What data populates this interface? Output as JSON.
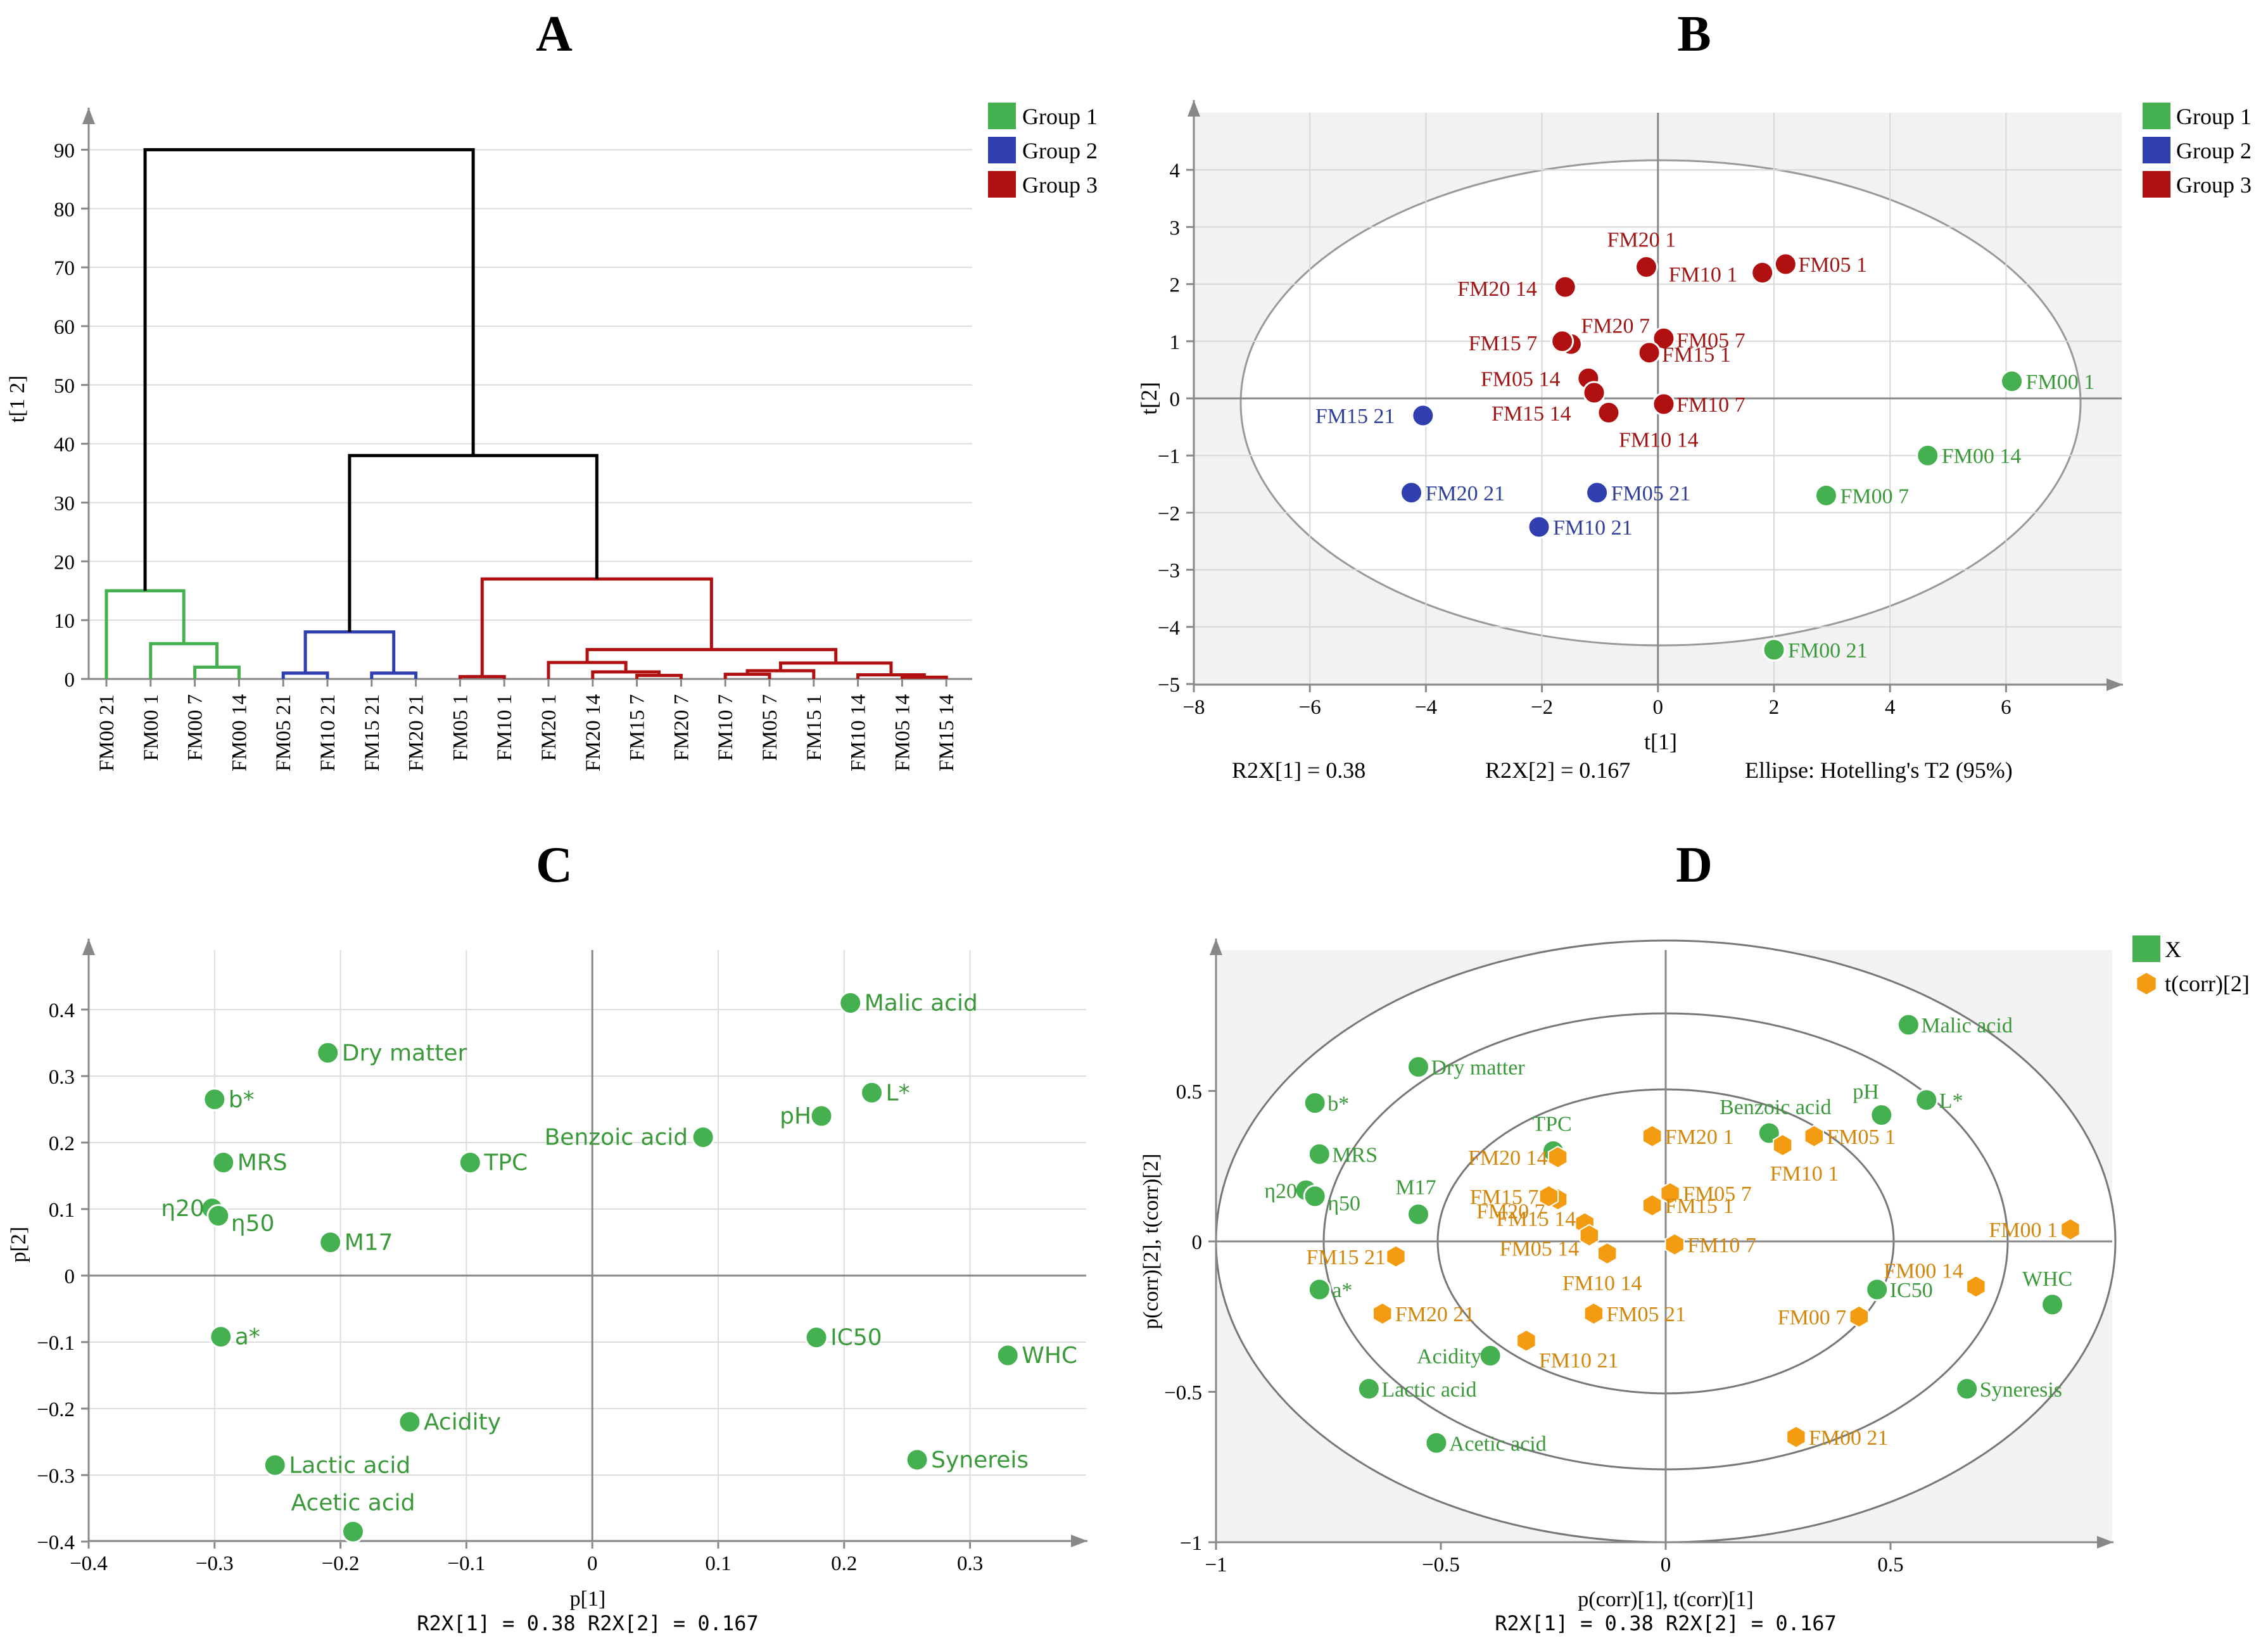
{
  "panels": {
    "A": {
      "letter": "A",
      "ylabel": "t[1 2]",
      "yticks": [
        0,
        10,
        20,
        30,
        40,
        50,
        60,
        70,
        80,
        90
      ],
      "leaves": [
        "FM00 21",
        "FM00 1",
        "FM00 7",
        "FM00 14",
        "FM05 21",
        "FM10 21",
        "FM15 21",
        "FM20 21",
        "FM05 1",
        "FM10 1",
        "FM20 1",
        "FM20 14",
        "FM15 7",
        "FM20 7",
        "FM10 7",
        "FM05 7",
        "FM15 1",
        "FM10 14",
        "FM05 14",
        "FM15 14"
      ],
      "legend": [
        {
          "label": "Group 1",
          "color": "#45b050"
        },
        {
          "label": "Group 2",
          "color": "#2f3fb0"
        },
        {
          "label": "Group 3",
          "color": "#b01010"
        }
      ]
    },
    "B": {
      "letter": "B",
      "xlabel": "t[1]",
      "ylabel": "t[2]",
      "xticks": [
        -8,
        -6,
        -4,
        -2,
        0,
        2,
        4,
        6
      ],
      "yticks": [
        -5,
        -4,
        -3,
        -2,
        -1,
        0,
        1,
        2,
        3,
        4
      ],
      "footer_left": "R2X[1] = 0.38",
      "footer_mid": "R2X[2] = 0.167",
      "footer_right": "Ellipse: Hotelling's T2 (95%)",
      "legend": [
        {
          "label": "Group 1",
          "color": "#45b050"
        },
        {
          "label": "Group 2",
          "color": "#2f3fb0"
        },
        {
          "label": "Group 3",
          "color": "#b01010"
        }
      ]
    },
    "C": {
      "letter": "C",
      "xlabel": "p[1]",
      "ylabel": "p[2]",
      "xticks": [
        -0.4,
        -0.3,
        -0.2,
        -0.1,
        0,
        0.1,
        0.2,
        0.3
      ],
      "yticks": [
        -0.4,
        -0.3,
        -0.2,
        -0.1,
        0,
        0.1,
        0.2,
        0.3,
        0.4
      ],
      "footer": "R2X[1] = 0.38  R2X[2] = 0.167"
    },
    "D": {
      "letter": "D",
      "xlabel": "p(corr)[1], t(corr)[1]",
      "ylabel": "p(corr)[2], t(corr)[2]",
      "xticks": [
        -1,
        -0.5,
        0,
        0.5
      ],
      "yticks": [
        -1,
        -0.5,
        0,
        0.5
      ],
      "footer": "R2X[1] = 0.38  R2X[2] = 0.167",
      "legend": [
        {
          "label": "X",
          "color": "#45b050"
        },
        {
          "label": "t(corr)[2]",
          "color": "#f39c12"
        }
      ]
    }
  },
  "chart_data": [
    {
      "id": "A",
      "type": "dendrogram",
      "title": "A",
      "ylabel": "t[1 2]",
      "ylim": [
        0,
        95
      ],
      "leaves": [
        "FM00 21",
        "FM00 1",
        "FM00 7",
        "FM00 14",
        "FM05 21",
        "FM10 21",
        "FM15 21",
        "FM20 21",
        "FM05 1",
        "FM10 1",
        "FM20 1",
        "FM20 14",
        "FM15 7",
        "FM20 7",
        "FM10 7",
        "FM05 7",
        "FM15 1",
        "FM10 14",
        "FM05 14",
        "FM15 14"
      ],
      "leaf_groups": [
        1,
        1,
        1,
        1,
        2,
        2,
        2,
        2,
        3,
        3,
        3,
        3,
        3,
        3,
        3,
        3,
        3,
        3,
        3,
        3
      ],
      "merges": [
        {
          "id": "g1a",
          "children": [
            "L2",
            "L3"
          ],
          "height": 2,
          "group": 1
        },
        {
          "id": "g1b",
          "children": [
            "L1",
            "g1a"
          ],
          "height": 6,
          "group": 1
        },
        {
          "id": "g1",
          "children": [
            "L0",
            "g1b"
          ],
          "height": 15,
          "group": 1
        },
        {
          "id": "g2a",
          "children": [
            "L4",
            "L5"
          ],
          "height": 1,
          "group": 2
        },
        {
          "id": "g2b",
          "children": [
            "L6",
            "L7"
          ],
          "height": 1,
          "group": 2
        },
        {
          "id": "g2",
          "children": [
            "g2a",
            "g2b"
          ],
          "height": 8,
          "group": 2
        },
        {
          "id": "g3a",
          "children": [
            "L8",
            "L9"
          ],
          "height": 0.4,
          "group": 3
        },
        {
          "id": "g3b",
          "children": [
            "L12",
            "L13"
          ],
          "height": 0.6,
          "group": 3
        },
        {
          "id": "g3c",
          "children": [
            "L11",
            "g3b"
          ],
          "height": 1.2,
          "group": 3
        },
        {
          "id": "g3d",
          "children": [
            "L10",
            "g3c"
          ],
          "height": 2.8,
          "group": 3
        },
        {
          "id": "g3e",
          "children": [
            "L14",
            "L15"
          ],
          "height": 0.8,
          "group": 3
        },
        {
          "id": "g3f",
          "children": [
            "g3e",
            "L16"
          ],
          "height": 1.4,
          "group": 3
        },
        {
          "id": "g3g",
          "children": [
            "L18",
            "L19"
          ],
          "height": 0.3,
          "group": 3
        },
        {
          "id": "g3h",
          "children": [
            "L17",
            "g3g"
          ],
          "height": 0.7,
          "group": 3
        },
        {
          "id": "g3i",
          "children": [
            "g3f",
            "g3h"
          ],
          "height": 2.7,
          "group": 3
        },
        {
          "id": "g3j",
          "children": [
            "g3d",
            "g3i"
          ],
          "height": 5,
          "group": 3
        },
        {
          "id": "g3",
          "children": [
            "g3a",
            "g3j"
          ],
          "height": 17,
          "group": 3
        },
        {
          "id": "g23",
          "children": [
            "g2",
            "g3"
          ],
          "height": 38,
          "group": 0
        },
        {
          "id": "root",
          "children": [
            "g1",
            "g23"
          ],
          "height": 90,
          "group": 0
        }
      ],
      "legend": [
        "Group 1",
        "Group 2",
        "Group 3"
      ]
    },
    {
      "id": "B",
      "type": "scatter",
      "title": "B",
      "xlabel": "t[1]",
      "ylabel": "t[2]",
      "xlim": [
        -8,
        8
      ],
      "ylim": [
        -5,
        4.5
      ],
      "ellipse": {
        "a": 7.2,
        "b": 4.2,
        "label": "Ellipse: Hotelling's T2 (95%)"
      },
      "points": [
        {
          "label": "FM20 1",
          "x": -0.2,
          "y": 2.3,
          "group": 3
        },
        {
          "label": "FM05 1",
          "x": 2.2,
          "y": 2.35,
          "group": 3
        },
        {
          "label": "FM10 1",
          "x": 1.8,
          "y": 2.2,
          "group": 3
        },
        {
          "label": "FM20 14",
          "x": -1.6,
          "y": 1.95,
          "group": 3
        },
        {
          "label": "FM20 7",
          "x": -1.5,
          "y": 0.95,
          "group": 3
        },
        {
          "label": "FM05 7",
          "x": 0.1,
          "y": 1.05,
          "group": 3
        },
        {
          "label": "FM15 7",
          "x": -1.65,
          "y": 1.0,
          "group": 3
        },
        {
          "label": "FM15 1",
          "x": -0.15,
          "y": 0.8,
          "group": 3
        },
        {
          "label": "FM05 14",
          "x": -1.2,
          "y": 0.35,
          "group": 3
        },
        {
          "label": "FM15 14",
          "x": -1.1,
          "y": 0.1,
          "group": 3
        },
        {
          "label": "FM10 7",
          "x": 0.1,
          "y": -0.1,
          "group": 3
        },
        {
          "label": "FM10 14",
          "x": -0.85,
          "y": -0.25,
          "group": 3
        },
        {
          "label": "FM15 21",
          "x": -4.05,
          "y": -0.3,
          "group": 2
        },
        {
          "label": "FM20 21",
          "x": -4.25,
          "y": -1.65,
          "group": 2
        },
        {
          "label": "FM05 21",
          "x": -1.05,
          "y": -1.65,
          "group": 2
        },
        {
          "label": "FM10 21",
          "x": -2.05,
          "y": -2.25,
          "group": 2
        },
        {
          "label": "FM00 1",
          "x": 6.1,
          "y": 0.3,
          "group": 1
        },
        {
          "label": "FM00 14",
          "x": 4.65,
          "y": -1.0,
          "group": 1
        },
        {
          "label": "FM00 7",
          "x": 2.9,
          "y": -1.7,
          "group": 1
        },
        {
          "label": "FM00 21",
          "x": 2.0,
          "y": -4.4,
          "group": 1
        }
      ],
      "footer": [
        "R2X[1] = 0.38",
        "R2X[2] = 0.167"
      ]
    },
    {
      "id": "C",
      "type": "scatter",
      "title": "C",
      "xlabel": "p[1]",
      "ylabel": "p[2]",
      "xlim": [
        -0.4,
        0.4
      ],
      "ylim": [
        -0.4,
        0.45
      ],
      "points": [
        {
          "label": "Malic acid",
          "x": 0.205,
          "y": 0.41
        },
        {
          "label": "L*",
          "x": 0.222,
          "y": 0.275
        },
        {
          "label": "pH",
          "x": 0.182,
          "y": 0.24
        },
        {
          "label": "Benzoic acid",
          "x": 0.088,
          "y": 0.208
        },
        {
          "label": "Dry matter",
          "x": -0.21,
          "y": 0.335
        },
        {
          "label": "b*",
          "x": -0.3,
          "y": 0.265
        },
        {
          "label": "MRS",
          "x": -0.293,
          "y": 0.17
        },
        {
          "label": "TPC",
          "x": -0.097,
          "y": 0.17
        },
        {
          "label": "η20",
          "x": -0.302,
          "y": 0.101
        },
        {
          "label": "η50",
          "x": -0.297,
          "y": 0.09
        },
        {
          "label": "M17",
          "x": -0.208,
          "y": 0.05
        },
        {
          "label": "a*",
          "x": -0.295,
          "y": -0.092
        },
        {
          "label": "IC50",
          "x": 0.178,
          "y": -0.093
        },
        {
          "label": "WHC",
          "x": 0.33,
          "y": -0.12
        },
        {
          "label": "Acidity",
          "x": -0.145,
          "y": -0.22
        },
        {
          "label": "Lactic acid",
          "x": -0.252,
          "y": -0.285
        },
        {
          "label": "Synereis",
          "x": 0.258,
          "y": -0.277
        },
        {
          "label": "Acetic acid",
          "x": -0.19,
          "y": -0.385
        }
      ],
      "footer": [
        "R2X[1] = 0.38",
        "R2X[2] = 0.167"
      ]
    },
    {
      "id": "D",
      "type": "scatter",
      "title": "D",
      "xlabel": "p(corr)[1], t(corr)[1]",
      "ylabel": "p(corr)[2], t(corr)[2]",
      "xlim": [
        -1,
        1
      ],
      "ylim": [
        -1,
        0.9
      ],
      "circles": [
        1.0,
        0.75,
        0.5
      ],
      "variables": [
        {
          "label": "Malic acid",
          "x": 0.54,
          "y": 0.72
        },
        {
          "label": "L*",
          "x": 0.58,
          "y": 0.47
        },
        {
          "label": "pH",
          "x": 0.48,
          "y": 0.42
        },
        {
          "label": "Benzoic acid",
          "x": 0.23,
          "y": 0.36
        },
        {
          "label": "Dry matter",
          "x": -0.55,
          "y": 0.58
        },
        {
          "label": "b*",
          "x": -0.78,
          "y": 0.46
        },
        {
          "label": "MRS",
          "x": -0.77,
          "y": 0.29
        },
        {
          "label": "TPC",
          "x": -0.25,
          "y": 0.3
        },
        {
          "label": "η20",
          "x": -0.8,
          "y": 0.17
        },
        {
          "label": "η50",
          "x": -0.78,
          "y": 0.15
        },
        {
          "label": "M17",
          "x": -0.55,
          "y": 0.09
        },
        {
          "label": "a*",
          "x": -0.77,
          "y": -0.16
        },
        {
          "label": "IC50",
          "x": 0.47,
          "y": -0.16
        },
        {
          "label": "WHC",
          "x": 0.86,
          "y": -0.21
        },
        {
          "label": "Acidity",
          "x": -0.39,
          "y": -0.38
        },
        {
          "label": "Lactic acid",
          "x": -0.66,
          "y": -0.49
        },
        {
          "label": "Syneresis",
          "x": 0.67,
          "y": -0.49
        },
        {
          "label": "Acetic acid",
          "x": -0.51,
          "y": -0.67
        }
      ],
      "scores": [
        {
          "label": "FM20 1",
          "x": -0.03,
          "y": 0.35
        },
        {
          "label": "FM05 1",
          "x": 0.33,
          "y": 0.35
        },
        {
          "label": "FM10 1",
          "x": 0.26,
          "y": 0.32
        },
        {
          "label": "FM20 14",
          "x": -0.24,
          "y": 0.28
        },
        {
          "label": "FM20 7",
          "x": -0.24,
          "y": 0.14
        },
        {
          "label": "FM05 7",
          "x": 0.01,
          "y": 0.16
        },
        {
          "label": "FM15 7",
          "x": -0.26,
          "y": 0.15
        },
        {
          "label": "FM15 1",
          "x": -0.03,
          "y": 0.12
        },
        {
          "label": "FM15 14",
          "x": -0.18,
          "y": 0.06
        },
        {
          "label": "FM05 14",
          "x": -0.17,
          "y": 0.02
        },
        {
          "label": "FM10 7",
          "x": 0.02,
          "y": -0.01
        },
        {
          "label": "FM10 14",
          "x": -0.13,
          "y": -0.04
        },
        {
          "label": "FM15 21",
          "x": -0.6,
          "y": -0.05
        },
        {
          "label": "FM20 21",
          "x": -0.63,
          "y": -0.24
        },
        {
          "label": "FM05 21",
          "x": -0.16,
          "y": -0.24
        },
        {
          "label": "FM10 21",
          "x": -0.31,
          "y": -0.33
        },
        {
          "label": "FM00 1",
          "x": 0.9,
          "y": 0.04
        },
        {
          "label": "FM00 14",
          "x": 0.69,
          "y": -0.15
        },
        {
          "label": "FM00 7",
          "x": 0.43,
          "y": -0.25
        },
        {
          "label": "FM00 21",
          "x": 0.29,
          "y": -0.65
        }
      ],
      "legend": [
        "X",
        "t(corr)[2]"
      ],
      "footer": [
        "R2X[1] = 0.38",
        "R2X[2] = 0.167"
      ]
    }
  ]
}
